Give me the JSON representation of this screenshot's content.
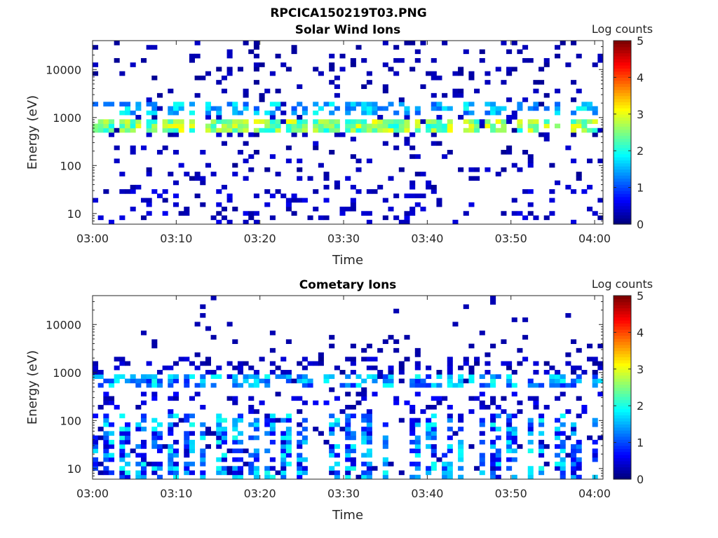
{
  "figure_title": "RPCICA150219T03.PNG",
  "chart_data": [
    {
      "type": "heatmap",
      "title": "Solar Wind Ions",
      "xlabel": "Time",
      "ylabel": "Energy (eV)",
      "x_ticks": [
        "03:00",
        "03:10",
        "03:20",
        "03:30",
        "03:40",
        "03:50",
        "04:00"
      ],
      "xlim": [
        "03:00",
        "04:01"
      ],
      "y_scale": "log",
      "y_ticks": [
        "10",
        "100",
        "1000",
        "10000"
      ],
      "ylim": [
        6,
        40000
      ],
      "colorbar": {
        "label": "Log counts",
        "ticks": [
          "0",
          "1",
          "2",
          "3",
          "4",
          "5"
        ],
        "range": [
          0,
          5
        ],
        "colormap": "jet"
      },
      "features": [
        {
          "x_range": [
            "03:00",
            "04:01"
          ],
          "y_center": 700,
          "peak_log_counts": 3.0
        },
        {
          "x_range": [
            "03:00",
            "04:01"
          ],
          "y_center": 1500,
          "peak_log_counts": 2.0
        }
      ]
    },
    {
      "type": "heatmap",
      "title": "Cometary Ions",
      "xlabel": "Time",
      "ylabel": "Energy (eV)",
      "x_ticks": [
        "03:00",
        "03:10",
        "03:20",
        "03:30",
        "03:40",
        "03:50",
        "04:00"
      ],
      "xlim": [
        "03:00",
        "04:01"
      ],
      "y_scale": "log",
      "y_ticks": [
        "10",
        "100",
        "1000",
        "10000"
      ],
      "ylim": [
        6,
        40000
      ],
      "colorbar": {
        "label": "Log counts",
        "ticks": [
          "0",
          "1",
          "2",
          "3",
          "4",
          "5"
        ],
        "range": [
          0,
          5
        ],
        "colormap": "jet"
      },
      "features": [
        {
          "x_range": [
            "03:00",
            "04:01"
          ],
          "y_center": 700,
          "peak_log_counts": 2.0
        },
        {
          "x_range": [
            "03:00",
            "04:01"
          ],
          "y_center": 40,
          "peak_log_counts": 2.0
        },
        {
          "x_range": [
            "03:00",
            "04:01"
          ],
          "y_center": 15,
          "peak_log_counts": 2.0
        }
      ]
    }
  ]
}
